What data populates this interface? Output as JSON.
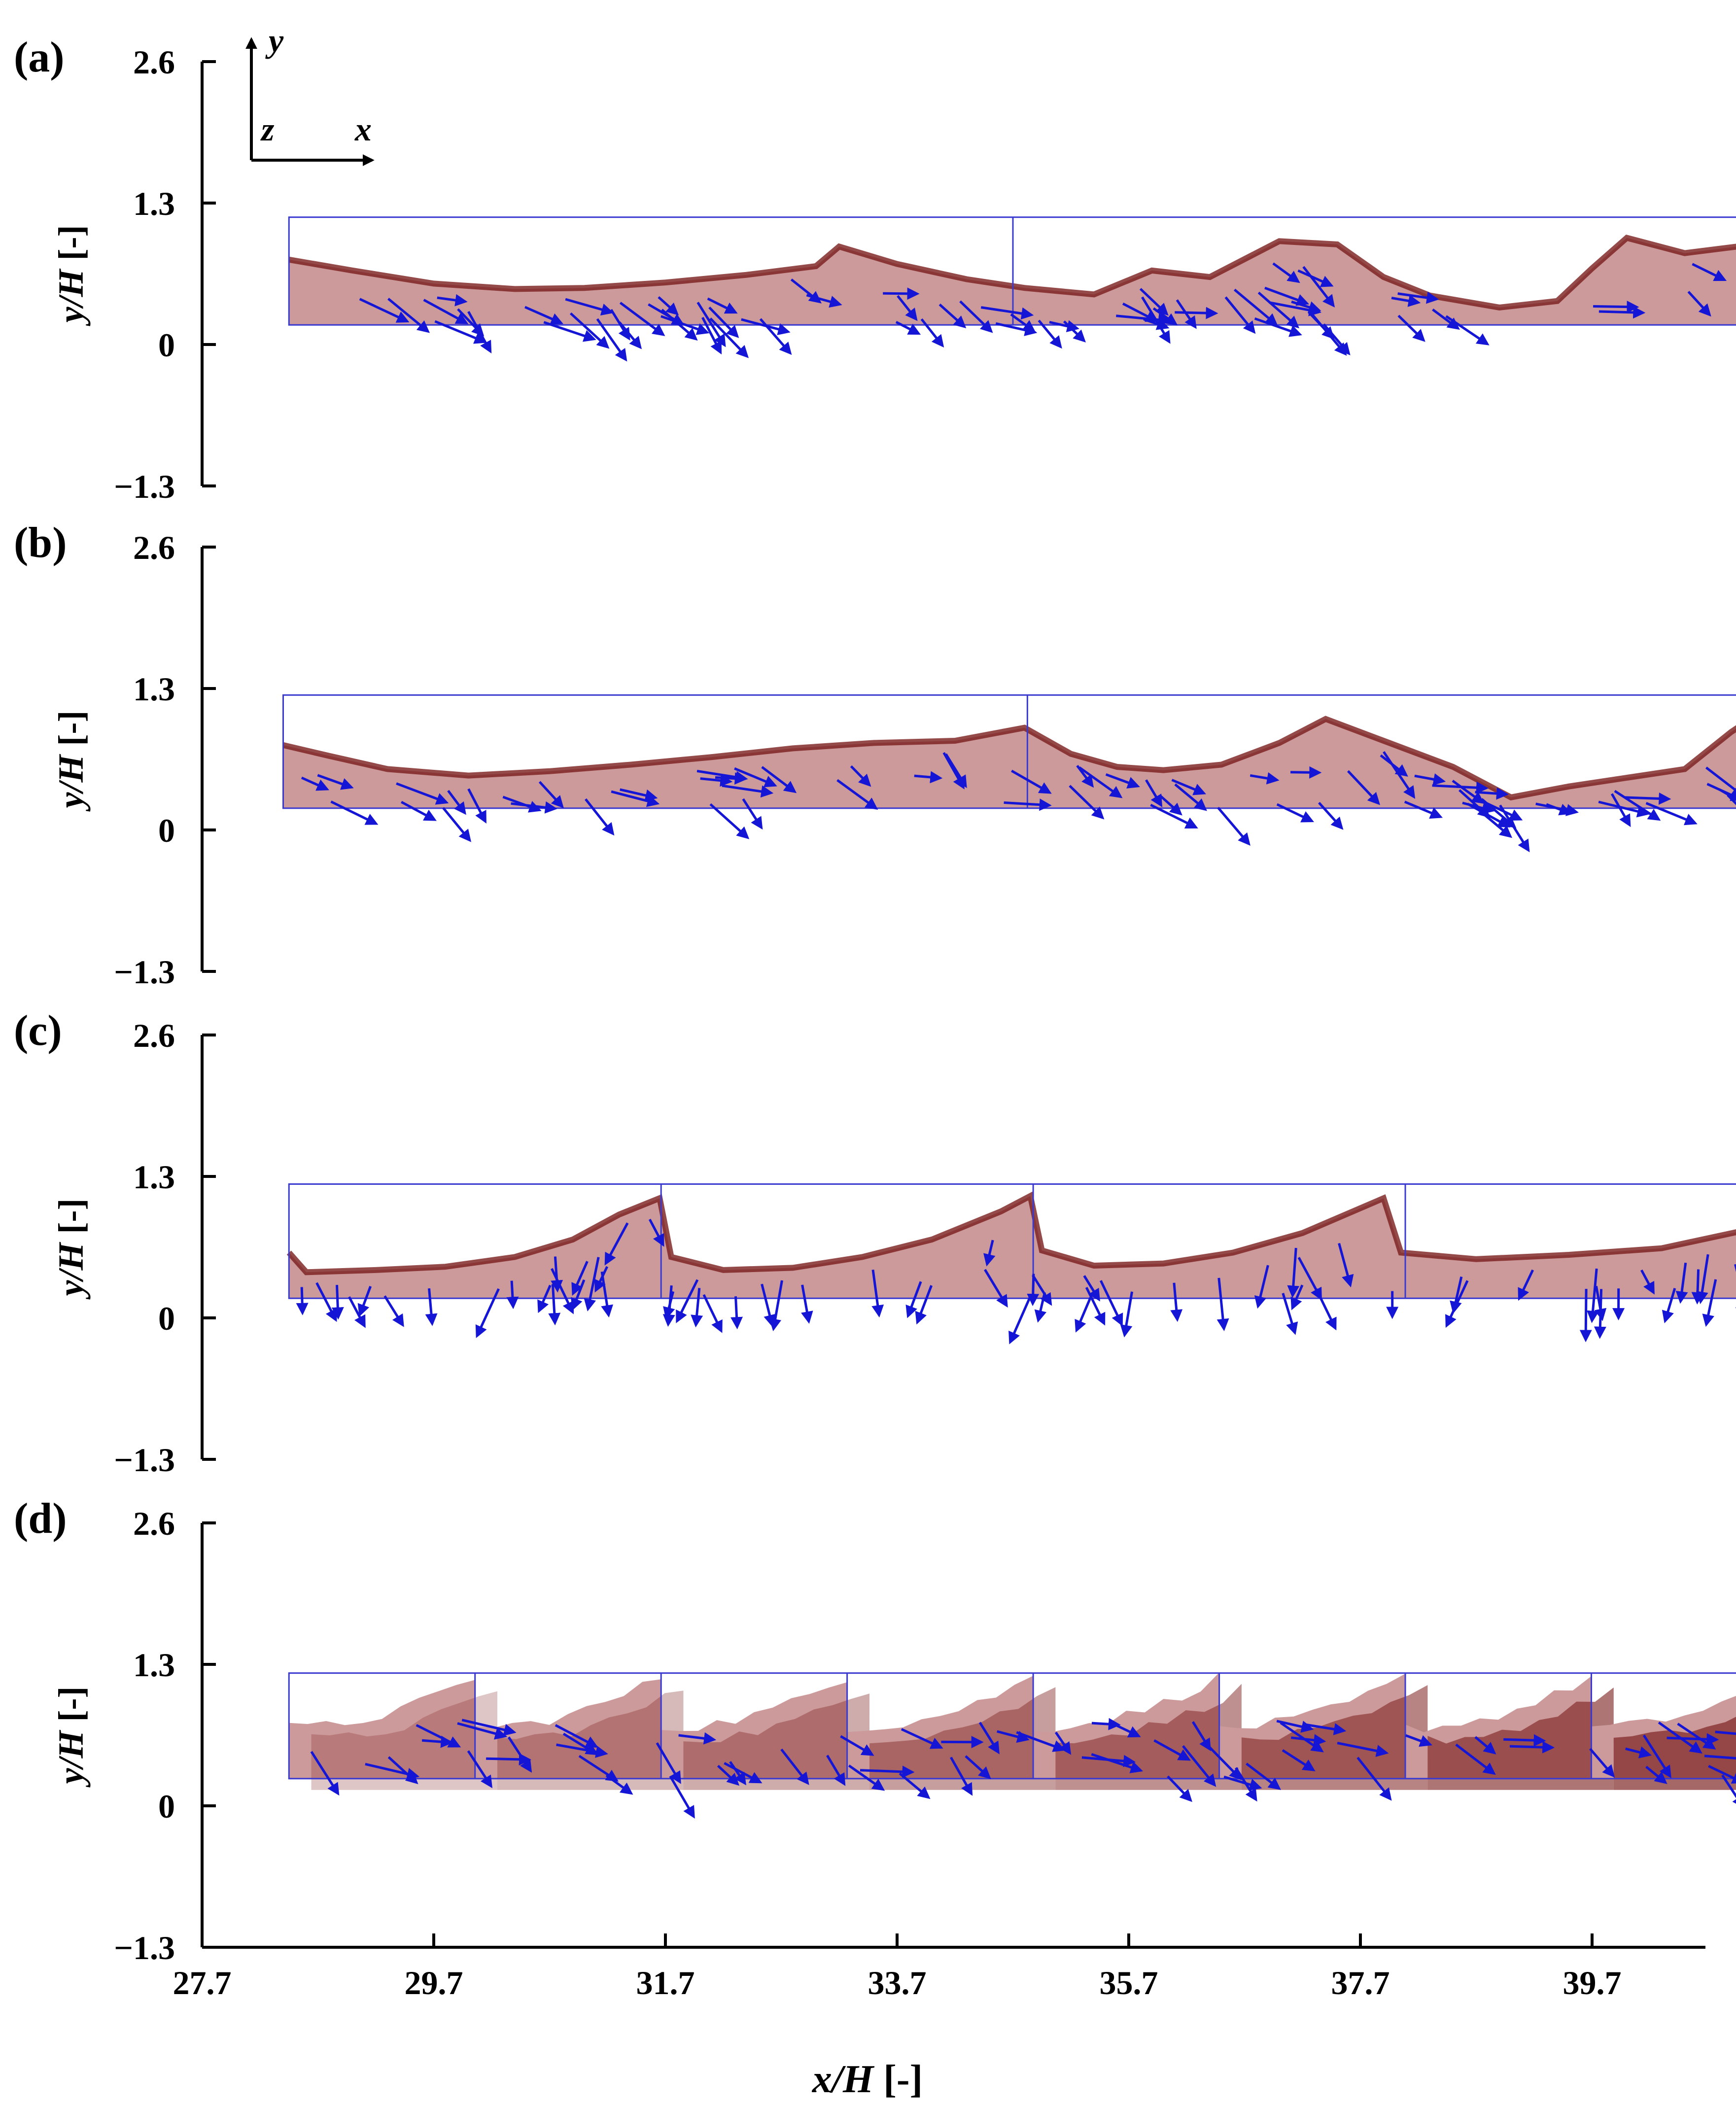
{
  "figure": {
    "xlabel_main": "x/H",
    "xlabel_unit": " [-]",
    "ylabel_main": "y/H",
    "ylabel_unit": " [-]",
    "xticks": [
      "27.7",
      "29.7",
      "31.7",
      "33.7",
      "35.7",
      "37.7",
      "39.7"
    ],
    "yticks": [
      "2.6",
      "1.3",
      "0",
      "−1.3"
    ],
    "axes_indicator": {
      "y": "y",
      "x": "x",
      "z": "z"
    },
    "colors": {
      "liquid": "#cc9a9a",
      "liquid_dark": "#7b1d1d",
      "frame": "#3a3ad0",
      "vector": "#1515d6",
      "axis": "#000000"
    }
  },
  "chart_data": [
    {
      "type": "area",
      "panel_label": "(a)",
      "segments": 2,
      "x_range": [
        28.45,
        40.95
      ],
      "y_range": [
        0.18,
        1.17
      ],
      "surface_x": [
        28.45,
        29.0,
        29.7,
        30.4,
        31.0,
        31.7,
        32.4,
        33.0,
        33.2,
        33.7,
        34.3,
        34.8,
        35.4,
        35.9,
        36.4,
        37.0,
        37.5,
        37.9,
        38.3,
        38.9,
        39.4,
        39.7,
        40.0,
        40.5,
        40.95
      ],
      "surface_y": [
        0.78,
        0.68,
        0.56,
        0.51,
        0.52,
        0.57,
        0.64,
        0.72,
        0.9,
        0.74,
        0.6,
        0.52,
        0.46,
        0.68,
        0.62,
        0.95,
        0.92,
        0.62,
        0.45,
        0.34,
        0.4,
        0.7,
        0.98,
        0.84,
        0.9
      ]
    },
    {
      "type": "area",
      "panel_label": "(b)",
      "segments": 2,
      "x_range": [
        28.4,
        41.25
      ],
      "y_range": [
        0.2,
        1.24
      ],
      "surface_x": [
        28.4,
        28.8,
        29.3,
        30.0,
        30.7,
        31.4,
        32.1,
        32.8,
        33.5,
        34.2,
        34.8,
        35.2,
        35.6,
        36.0,
        36.5,
        37.0,
        37.4,
        37.9,
        38.5,
        39.0,
        39.5,
        40.0,
        40.5,
        40.9,
        41.25
      ],
      "surface_y": [
        0.78,
        0.68,
        0.56,
        0.5,
        0.54,
        0.6,
        0.67,
        0.75,
        0.8,
        0.82,
        0.94,
        0.7,
        0.58,
        0.55,
        0.6,
        0.8,
        1.02,
        0.82,
        0.58,
        0.3,
        0.4,
        0.48,
        0.56,
        0.9,
        1.15
      ]
    },
    {
      "type": "area",
      "panel_label": "(c)",
      "segments": 4,
      "x_range": [
        28.45,
        41.3
      ],
      "y_range": [
        0.18,
        1.23
      ],
      "surface_x": [
        28.45,
        28.6,
        29.2,
        29.8,
        30.4,
        30.9,
        31.3,
        31.65,
        31.75,
        32.2,
        32.8,
        33.4,
        34.0,
        34.6,
        34.85,
        34.95,
        35.4,
        36.0,
        36.6,
        37.2,
        37.9,
        38.05,
        38.7,
        39.5,
        40.3,
        41.0,
        41.3
      ],
      "surface_y": [
        0.6,
        0.42,
        0.44,
        0.47,
        0.56,
        0.72,
        0.95,
        1.1,
        0.56,
        0.44,
        0.46,
        0.56,
        0.72,
        0.98,
        1.12,
        0.62,
        0.48,
        0.5,
        0.6,
        0.78,
        1.1,
        0.6,
        0.54,
        0.58,
        0.64,
        0.8,
        1.2
      ]
    },
    {
      "type": "area",
      "panel_label": "(d)",
      "segments": 8,
      "x_range": [
        28.45,
        41.3
      ],
      "y_range": [
        0.25,
        1.22
      ]
    }
  ]
}
